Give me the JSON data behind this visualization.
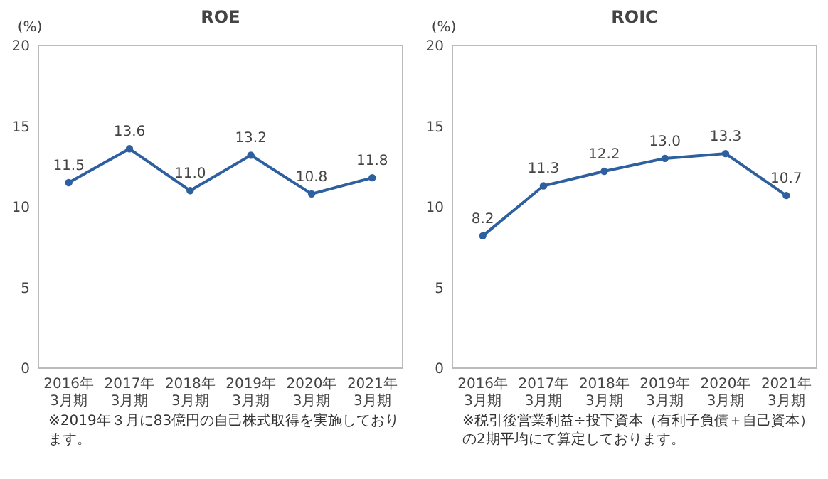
{
  "chart_data": [
    {
      "type": "line",
      "title": "ROE",
      "ylabel": "(%)",
      "categories": [
        "2016年\n3月期",
        "2017年\n3月期",
        "2018年\n3月期",
        "2019年\n3月期",
        "2020年\n3月期",
        "2021年\n3月期"
      ],
      "series": [
        {
          "color": "#2e5f9e",
          "values": [
            11.5,
            13.6,
            11.0,
            13.2,
            10.8,
            11.8
          ]
        }
      ],
      "ylim": [
        0,
        20
      ],
      "yticks": [
        0,
        5,
        10,
        15,
        20
      ],
      "marker": "circle",
      "value_labels": [
        "11.5",
        "13.6",
        "11.0",
        "13.2",
        "10.8",
        "11.8"
      ],
      "annotations": [
        "※2019年３月に83億円の自己株式取得を実施しております。"
      ]
    },
    {
      "type": "line",
      "title": "ROIC",
      "ylabel": "(%)",
      "categories": [
        "2016年\n3月期",
        "2017年\n3月期",
        "2018年\n3月期",
        "2019年\n3月期",
        "2020年\n3月期",
        "2021年\n3月期"
      ],
      "series": [
        {
          "color": "#2e5f9e",
          "values": [
            8.2,
            11.3,
            12.2,
            13.0,
            13.3,
            10.7
          ]
        }
      ],
      "ylim": [
        0,
        20
      ],
      "yticks": [
        0,
        5,
        10,
        15,
        20
      ],
      "marker": "circle",
      "value_labels": [
        "8.2",
        "11.3",
        "12.2",
        "13.0",
        "13.3",
        "10.7"
      ],
      "annotations": [
        "※税引後営業利益÷投下資本（有利子負債＋自己資本）の2期平均にて算定しております。"
      ]
    }
  ]
}
